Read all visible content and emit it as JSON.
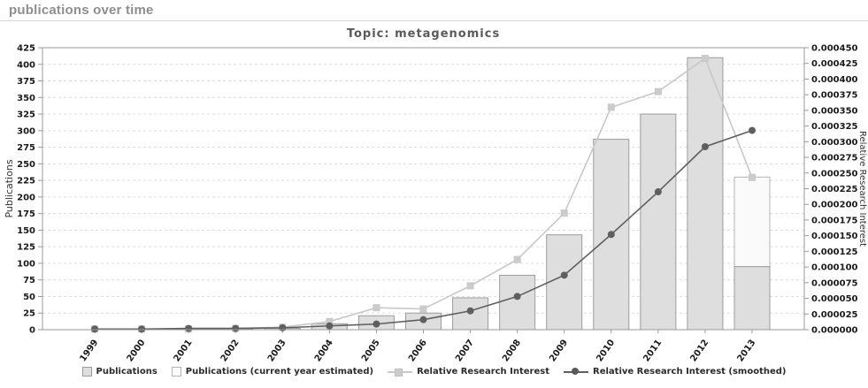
{
  "page": {
    "header": "publications over time"
  },
  "chart": {
    "title": "Topic: metagenomics",
    "legend": [
      {
        "label": "Publications"
      },
      {
        "label": "Publications (current year estimated)"
      },
      {
        "label": "Relative Research Interest"
      },
      {
        "label": "Relative Research Interest (smoothed)"
      }
    ]
  },
  "colors": {
    "header_text": "#8e8e8e",
    "title_text": "#5a5a5a",
    "bar_fill": "#dedede",
    "bar_border": "#9c9c9c",
    "bar_estimated_fill": "#fafafa",
    "bar_estimated_border": "#b4b4b4",
    "rri_line": "#c8c8c8",
    "rri_marker": "#cccccc",
    "rri_smoothed_line": "#5f5f5f",
    "gridline": "#dcdcdc",
    "axis_border": "#9a9a9a",
    "tick_text": "#1a1a1a",
    "axis_label_text": "#333333"
  },
  "chart_data": {
    "type": "bar",
    "title": "Topic: metagenomics",
    "categories": [
      "1999",
      "2000",
      "2001",
      "2002",
      "2003",
      "2004",
      "2005",
      "2006",
      "2007",
      "2008",
      "2009",
      "2010",
      "2011",
      "2012",
      "2013"
    ],
    "series": [
      {
        "name": "Publications",
        "type": "bar",
        "axis": "left",
        "values": [
          0,
          0,
          0,
          1,
          2,
          9,
          21,
          25,
          48,
          82,
          143,
          287,
          325,
          410,
          95
        ]
      },
      {
        "name": "Publications (current year estimated)",
        "type": "bar-estimated",
        "axis": "left",
        "values": [
          null,
          null,
          null,
          null,
          null,
          null,
          null,
          null,
          null,
          null,
          null,
          null,
          null,
          null,
          230
        ]
      },
      {
        "name": "Relative Research Interest",
        "type": "line-square",
        "axis": "right",
        "values": [
          1e-06,
          1e-06,
          1e-06,
          2e-06,
          4e-06,
          1.3e-05,
          3.5e-05,
          3.3e-05,
          7e-05,
          0.000112,
          0.000186,
          0.000355,
          0.00038,
          0.000433,
          0.000243
        ]
      },
      {
        "name": "Relative Research Interest (smoothed)",
        "type": "line-circle",
        "axis": "right",
        "values": [
          1e-06,
          1e-06,
          2e-06,
          2e-06,
          3e-06,
          6e-06,
          9e-06,
          1.6e-05,
          3e-05,
          5.3e-05,
          8.7e-05,
          0.000152,
          0.00022,
          0.000292,
          0.000318
        ]
      }
    ],
    "left_axis": {
      "label": "Publications",
      "min": 0,
      "max": 425,
      "tick_step": 25
    },
    "right_axis": {
      "label": "Relative Research Interest",
      "min": 0,
      "max": 0.00045,
      "tick_step": 2.5e-05
    },
    "grid": true,
    "legend_position": "bottom"
  }
}
